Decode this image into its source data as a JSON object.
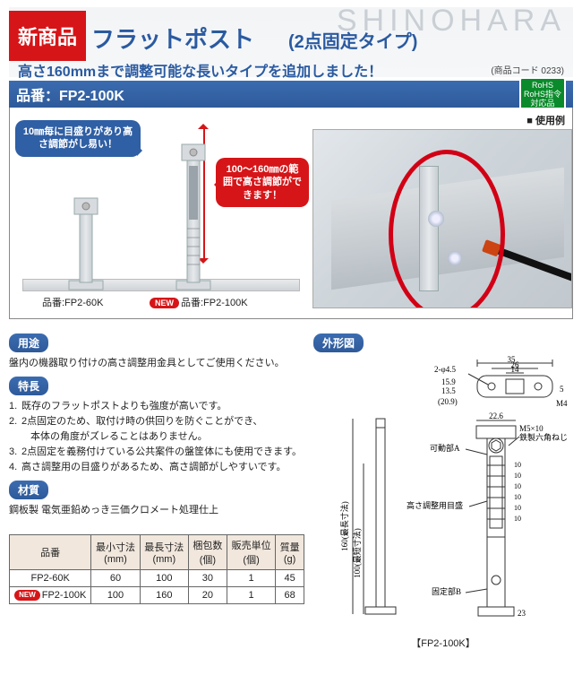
{
  "brand": "SHINOHARA",
  "badge_new": "新商品",
  "title_main": "フラットポスト",
  "title_sub": "(2点固定タイプ)",
  "tagline": "高さ160mmまで調整可能な長いタイプを追加しました！",
  "product_code": "(商品コード 0233)",
  "pn_bar": "品番：FP2-100K",
  "rohs": {
    "line1": "RoHS",
    "line2": "RoHS指令",
    "line3": "対応品"
  },
  "usage_label": "■ 使用例",
  "bubble_blue": "10㎜毎に目盛りがあり高さ調節がし易い！",
  "bubble_red": "100～160㎜の範囲で高さ調節ができます！",
  "caption_60": "品番:FP2-60K",
  "caption_100": "品番:FP2-100K",
  "new_pill": "NEW",
  "sections": {
    "usage_h": "用途",
    "usage_p": "盤内の機器取り付けの高さ調整用金具としてご使用ください。",
    "feat_h": "特長",
    "feat": [
      "既存のフラットポストよりも強度が高いです。",
      "2点固定のため、取付け時の供回りを防ぐことができ、",
      "本体の角度がズレることはありません。",
      "2点固定を義務付けている公共案件の盤筐体にも使用できます。",
      "高さ調整用の目盛りがあるため、高さ調節がしやすいです。"
    ],
    "mat_h": "材質",
    "mat_p": "鋼板製 電気亜鉛めっき三価クロメート処理仕上",
    "outline_h": "外形図"
  },
  "spec": {
    "headers": [
      "品番",
      "最小寸法\n(mm)",
      "最長寸法\n(mm)",
      "梱包数\n(個)",
      "販売単位\n(個)",
      "質量\n(g)"
    ],
    "rows": [
      {
        "new": false,
        "cells": [
          "FP2-60K",
          "60",
          "100",
          "30",
          "1",
          "45"
        ]
      },
      {
        "new": true,
        "cells": [
          "FP2-100K",
          "100",
          "160",
          "20",
          "1",
          "68"
        ]
      }
    ]
  },
  "outline": {
    "caption": "【FP2-100K】",
    "labels": {
      "phi": "2-φ4.5",
      "w35": "35",
      "w26": "26",
      "w14": "14",
      "h159": "15.9",
      "h135": "13.5",
      "h209": "(20.9)",
      "h5": "5",
      "m4": "M4",
      "w226": "22.6",
      "m5x10": "M5×10\n鉄製六角ねじ",
      "movA": "可動部A",
      "scale": "高さ調整用目盛",
      "fixB": "固定部B",
      "tens": "10",
      "b23": "23",
      "h160": "160(最長寸法)",
      "h100": "100(最短寸法)"
    }
  },
  "colors": {
    "blue": "#2f5fa4",
    "blue_grad_a": "#3b6cb0",
    "blue_grad_b": "#2e5a9a",
    "red": "#d61518",
    "table_head": "#f1e7dd"
  }
}
